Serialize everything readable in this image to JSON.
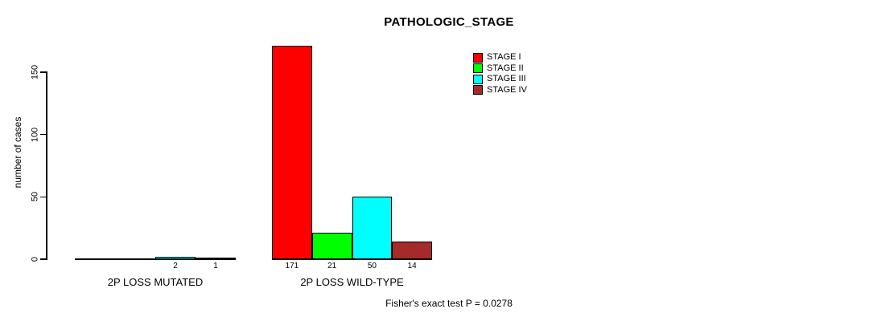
{
  "chart_data": {
    "type": "bar",
    "title": "PATHOLOGIC_STAGE",
    "ylabel": "number of cases",
    "y_axis": {
      "ticks": [
        0,
        50,
        100,
        150
      ]
    },
    "ylim": [
      0,
      171
    ],
    "grid": false,
    "legend_position": "top-right-inner",
    "series": [
      {
        "name": "STAGE I",
        "color": "#ff0000"
      },
      {
        "name": "STAGE II",
        "color": "#00ff00"
      },
      {
        "name": "STAGE III",
        "color": "#00ffff"
      },
      {
        "name": "STAGE IV",
        "color": "#a52a2a"
      }
    ],
    "groups": [
      {
        "label": "2P LOSS MUTATED",
        "values": [
          0,
          0,
          2,
          1
        ],
        "value_labels": [
          "",
          "",
          "2",
          "1"
        ]
      },
      {
        "label": "2P LOSS WILD-TYPE",
        "values": [
          171,
          21,
          50,
          14
        ],
        "value_labels": [
          "171",
          "21",
          "50",
          "14"
        ]
      }
    ],
    "annotation": "Fisher's exact test P = 0.0278"
  }
}
